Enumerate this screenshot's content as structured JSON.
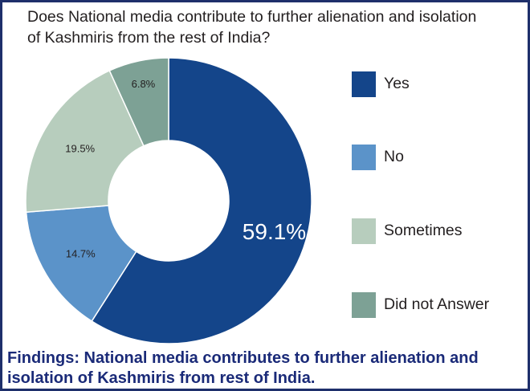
{
  "question": {
    "line1": "Does National media contribute to further alienation and isolation",
    "line2": "of Kashmiris from the rest of India?"
  },
  "findings": {
    "line1": "Findings: National media contributes to further alienation and",
    "line2": "isolation of Kashmiris from rest of India."
  },
  "chart_data": {
    "type": "pie",
    "donut": true,
    "categories": [
      "Yes",
      "No",
      "Sometimes",
      "Did not Answer"
    ],
    "values": [
      59.1,
      14.7,
      19.5,
      6.8
    ],
    "labels": [
      "59.1%",
      "14.7%",
      "19.5%",
      "6.8%"
    ],
    "colors": [
      "#14458a",
      "#5b93c9",
      "#b7cdbd",
      "#7da195"
    ],
    "label_colors": [
      "#ffffff",
      "#231f20",
      "#231f20",
      "#231f20"
    ],
    "legend_position": "right",
    "title": "Does National media contribute to further alienation and isolation of Kashmiris from the rest of India?"
  }
}
